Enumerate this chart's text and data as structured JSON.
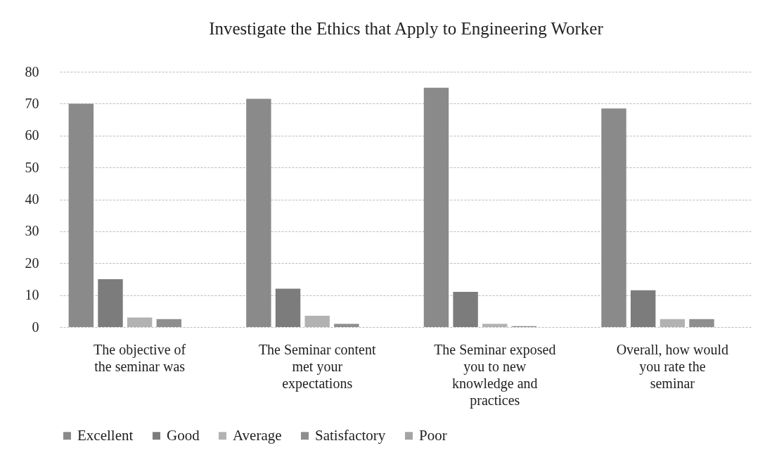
{
  "chart_data": {
    "type": "bar",
    "title": "Investigate the Ethics that Apply to Engineering Worker",
    "categories": [
      "The objective of the seminar was",
      "The Seminar content met your expectations",
      "The Seminar exposed you to new knowledge and practices",
      "Overall, how would you rate the seminar"
    ],
    "series": [
      {
        "name": "Excellent",
        "color": "#8a8a8a",
        "values": [
          70,
          71.5,
          75,
          68.5
        ]
      },
      {
        "name": "Good",
        "color": "#7c7c7c",
        "values": [
          15,
          12,
          11,
          11.5
        ]
      },
      {
        "name": "Average",
        "color": "#b2b2b2",
        "values": [
          3,
          3.5,
          1,
          2.5
        ]
      },
      {
        "name": "Satisfactory",
        "color": "#8e8e8e",
        "values": [
          2.5,
          1,
          0.3,
          2.5
        ]
      },
      {
        "name": "Poor",
        "color": "#a4a4a4",
        "values": [
          0,
          0,
          0,
          0
        ]
      }
    ],
    "ylim": [
      0,
      80
    ],
    "yticks": [
      0,
      10,
      20,
      30,
      40,
      50,
      60,
      70,
      80
    ],
    "grid": "y",
    "legend": "bottom"
  }
}
